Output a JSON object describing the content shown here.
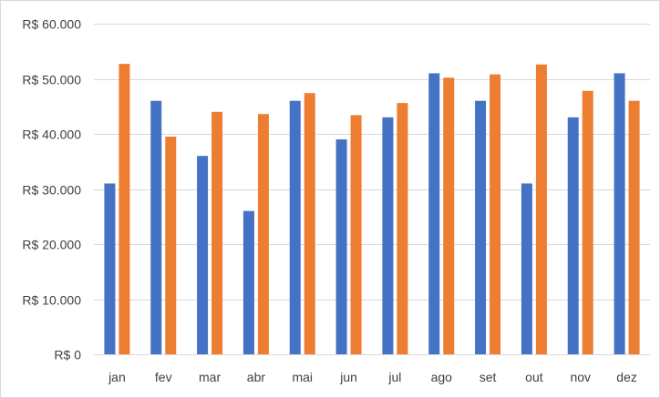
{
  "chart_data": {
    "type": "bar",
    "categories": [
      "jan",
      "fev",
      "mar",
      "abr",
      "mai",
      "jun",
      "jul",
      "ago",
      "set",
      "out",
      "nov",
      "dez"
    ],
    "series": [
      {
        "color": "#4472C4",
        "values": [
          31000,
          46000,
          36000,
          26000,
          46000,
          39000,
          43000,
          51000,
          46000,
          31000,
          43000,
          51000
        ]
      },
      {
        "color": "#ED7D31",
        "values": [
          52700,
          39500,
          44000,
          43600,
          47400,
          43400,
          45600,
          50200,
          50800,
          52600,
          47800,
          46000
        ]
      }
    ],
    "y_ticks": [
      0,
      10000,
      20000,
      30000,
      40000,
      50000,
      60000
    ],
    "y_tick_labels": [
      "R$ 0",
      "R$ 10.000",
      "R$ 20.000",
      "R$ 30.000",
      "R$ 40.000",
      "R$ 50.000",
      "R$ 60.000"
    ],
    "ylim": [
      0,
      60000
    ],
    "grid": true,
    "gridline_color": "#d9d9d9",
    "legend": "none"
  }
}
